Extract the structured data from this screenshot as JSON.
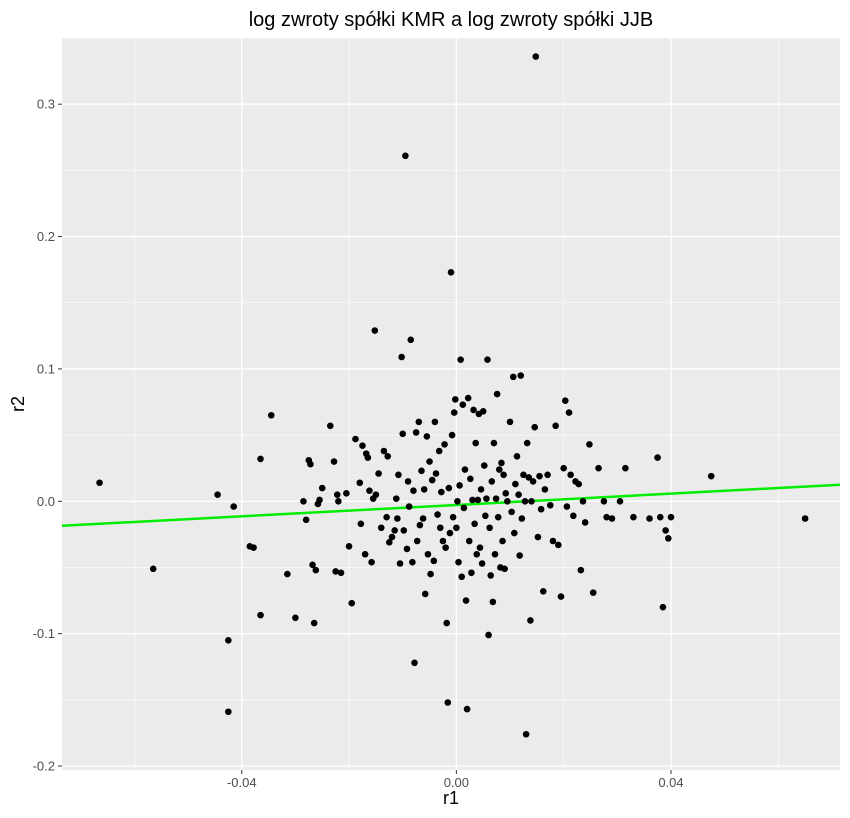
{
  "chart_data": {
    "type": "scatter",
    "title": "log zwroty spółki KMR a log zwroty spółki JJB",
    "xlabel": "r1",
    "ylabel": "r2",
    "xlim": [
      -0.0735,
      0.0715
    ],
    "ylim": [
      -0.203,
      0.35
    ],
    "x_ticks": [
      -0.04,
      0.0,
      0.04
    ],
    "x_tick_labels": [
      "-0.04",
      "0.00",
      "0.04"
    ],
    "y_ticks": [
      -0.2,
      -0.1,
      0.0,
      0.1,
      0.2,
      0.3
    ],
    "y_tick_labels": [
      "-0.2",
      "-0.1",
      "0.0",
      "0.1",
      "0.2",
      "0.3"
    ],
    "grid": true,
    "panel_background": "#ebebeb",
    "grid_color": "#ffffff",
    "point_color": "#000000",
    "trend_line": {
      "color": "#00ee00",
      "x": [
        -0.0735,
        0.0715
      ],
      "y": [
        -0.0185,
        0.0125
      ]
    },
    "points": [
      [
        -0.0665,
        0.014
      ],
      [
        -0.0565,
        -0.051
      ],
      [
        -0.0445,
        0.005
      ],
      [
        -0.0425,
        -0.105
      ],
      [
        -0.0425,
        -0.159
      ],
      [
        -0.0415,
        -0.004
      ],
      [
        -0.0385,
        -0.034
      ],
      [
        -0.0378,
        -0.035
      ],
      [
        -0.0365,
        0.032
      ],
      [
        -0.0365,
        -0.086
      ],
      [
        -0.0345,
        0.065
      ],
      [
        -0.0315,
        -0.055
      ],
      [
        -0.03,
        -0.088
      ],
      [
        -0.0285,
        0.0
      ],
      [
        -0.028,
        -0.014
      ],
      [
        -0.0275,
        0.031
      ],
      [
        -0.0272,
        0.028
      ],
      [
        -0.0268,
        -0.048
      ],
      [
        -0.0265,
        -0.092
      ],
      [
        -0.0262,
        -0.052
      ],
      [
        -0.0258,
        -0.002
      ],
      [
        -0.0255,
        0.001
      ],
      [
        -0.025,
        0.01
      ],
      [
        -0.0235,
        0.057
      ],
      [
        -0.0228,
        0.03
      ],
      [
        -0.0225,
        -0.053
      ],
      [
        -0.0222,
        0.005
      ],
      [
        -0.022,
        0.0
      ],
      [
        -0.0215,
        -0.054
      ],
      [
        -0.0205,
        0.006
      ],
      [
        -0.02,
        -0.034
      ],
      [
        -0.0195,
        -0.077
      ],
      [
        -0.0188,
        0.047
      ],
      [
        -0.018,
        0.014
      ],
      [
        -0.0178,
        -0.017
      ],
      [
        -0.0175,
        0.042
      ],
      [
        -0.017,
        -0.04
      ],
      [
        -0.0168,
        0.036
      ],
      [
        -0.0165,
        0.033
      ],
      [
        -0.0162,
        0.008
      ],
      [
        -0.0158,
        -0.046
      ],
      [
        -0.0155,
        0.002
      ],
      [
        -0.0152,
        0.129
      ],
      [
        -0.015,
        0.005
      ],
      [
        -0.0145,
        0.021
      ],
      [
        -0.014,
        -0.02
      ],
      [
        -0.0135,
        0.038
      ],
      [
        -0.013,
        -0.012
      ],
      [
        -0.0128,
        0.034
      ],
      [
        -0.0125,
        -0.031
      ],
      [
        -0.012,
        -0.027
      ],
      [
        -0.0115,
        -0.022
      ],
      [
        -0.0112,
        0.002
      ],
      [
        -0.011,
        -0.013
      ],
      [
        -0.0108,
        0.02
      ],
      [
        -0.0105,
        -0.047
      ],
      [
        -0.0102,
        0.109
      ],
      [
        -0.01,
        0.051
      ],
      [
        -0.0098,
        -0.022
      ],
      [
        -0.0095,
        0.261
      ],
      [
        -0.0092,
        -0.036
      ],
      [
        -0.009,
        0.015
      ],
      [
        -0.0088,
        -0.004
      ],
      [
        -0.0085,
        0.122
      ],
      [
        -0.0082,
        -0.046
      ],
      [
        -0.008,
        0.008
      ],
      [
        -0.0078,
        -0.122
      ],
      [
        -0.0075,
        0.052
      ],
      [
        -0.0073,
        -0.03
      ],
      [
        -0.007,
        0.06
      ],
      [
        -0.0068,
        -0.018
      ],
      [
        -0.0065,
        0.023
      ],
      [
        -0.0062,
        -0.013
      ],
      [
        -0.006,
        0.009
      ],
      [
        -0.0058,
        -0.07
      ],
      [
        -0.0055,
        0.049
      ],
      [
        -0.0053,
        -0.04
      ],
      [
        -0.005,
        0.03
      ],
      [
        -0.0048,
        -0.055
      ],
      [
        -0.0045,
        0.016
      ],
      [
        -0.0042,
        -0.045
      ],
      [
        -0.004,
        0.06
      ],
      [
        -0.0038,
        0.021
      ],
      [
        -0.0035,
        -0.01
      ],
      [
        -0.0032,
        0.038
      ],
      [
        -0.003,
        -0.02
      ],
      [
        -0.0028,
        0.007
      ],
      [
        -0.0025,
        -0.03
      ],
      [
        -0.0022,
        0.043
      ],
      [
        -0.002,
        -0.035
      ],
      [
        -0.0018,
        -0.092
      ],
      [
        -0.0016,
        -0.152
      ],
      [
        -0.0014,
        0.01
      ],
      [
        -0.0012,
        -0.024
      ],
      [
        -0.001,
        0.173
      ],
      [
        -0.0008,
        0.05
      ],
      [
        -0.0006,
        -0.012
      ],
      [
        -0.0004,
        0.067
      ],
      [
        -0.0002,
        0.077
      ],
      [
        0.0,
        -0.02
      ],
      [
        0.0002,
        0.0
      ],
      [
        0.0004,
        -0.046
      ],
      [
        0.0006,
        0.012
      ],
      [
        0.0008,
        0.107
      ],
      [
        0.001,
        -0.057
      ],
      [
        0.0012,
        0.073
      ],
      [
        0.0014,
        -0.005
      ],
      [
        0.0016,
        0.024
      ],
      [
        0.0018,
        -0.075
      ],
      [
        0.002,
        -0.157
      ],
      [
        0.0022,
        0.078
      ],
      [
        0.0024,
        -0.03
      ],
      [
        0.0026,
        0.017
      ],
      [
        0.0028,
        -0.054
      ],
      [
        0.003,
        0.001
      ],
      [
        0.0032,
        0.069
      ],
      [
        0.0034,
        -0.017
      ],
      [
        0.0036,
        0.044
      ],
      [
        0.0038,
        -0.04
      ],
      [
        0.004,
        0.001
      ],
      [
        0.0042,
        0.066
      ],
      [
        0.0044,
        -0.035
      ],
      [
        0.0046,
        0.009
      ],
      [
        0.0048,
        -0.047
      ],
      [
        0.005,
        0.068
      ],
      [
        0.0052,
        0.027
      ],
      [
        0.0054,
        -0.011
      ],
      [
        0.0056,
        0.002
      ],
      [
        0.0058,
        0.107
      ],
      [
        0.006,
        -0.101
      ],
      [
        0.0062,
        -0.02
      ],
      [
        0.0064,
        -0.056
      ],
      [
        0.0066,
        0.015
      ],
      [
        0.0068,
        -0.076
      ],
      [
        0.007,
        0.044
      ],
      [
        0.0072,
        -0.04
      ],
      [
        0.0074,
        0.002
      ],
      [
        0.0076,
        0.081
      ],
      [
        0.0078,
        -0.012
      ],
      [
        0.008,
        0.024
      ],
      [
        0.0082,
        -0.05
      ],
      [
        0.0084,
        0.029
      ],
      [
        0.0086,
        -0.03
      ],
      [
        0.0088,
        0.02
      ],
      [
        0.009,
        -0.051
      ],
      [
        0.0092,
        0.006
      ],
      [
        0.0095,
        0.0
      ],
      [
        0.01,
        0.06
      ],
      [
        0.0103,
        -0.008
      ],
      [
        0.0106,
        0.094
      ],
      [
        0.0108,
        -0.024
      ],
      [
        0.011,
        0.013
      ],
      [
        0.0113,
        0.034
      ],
      [
        0.0116,
        0.005
      ],
      [
        0.0118,
        -0.041
      ],
      [
        0.012,
        0.095
      ],
      [
        0.0122,
        -0.013
      ],
      [
        0.0125,
        0.02
      ],
      [
        0.0128,
        0.0
      ],
      [
        0.013,
        -0.176
      ],
      [
        0.0132,
        0.044
      ],
      [
        0.0135,
        0.018
      ],
      [
        0.0138,
        -0.09
      ],
      [
        0.014,
        0.0
      ],
      [
        0.0143,
        0.015
      ],
      [
        0.0146,
        0.056
      ],
      [
        0.0148,
        0.336
      ],
      [
        0.0152,
        -0.027
      ],
      [
        0.0155,
        0.019
      ],
      [
        0.0158,
        -0.006
      ],
      [
        0.0162,
        -0.068
      ],
      [
        0.0165,
        0.009
      ],
      [
        0.017,
        0.02
      ],
      [
        0.0175,
        -0.003
      ],
      [
        0.018,
        -0.03
      ],
      [
        0.0185,
        0.057
      ],
      [
        0.019,
        -0.033
      ],
      [
        0.0195,
        -0.072
      ],
      [
        0.02,
        0.025
      ],
      [
        0.0203,
        0.076
      ],
      [
        0.0206,
        -0.004
      ],
      [
        0.021,
        0.067
      ],
      [
        0.0213,
        0.02
      ],
      [
        0.0218,
        -0.011
      ],
      [
        0.0222,
        0.015
      ],
      [
        0.0228,
        0.013
      ],
      [
        0.0232,
        -0.052
      ],
      [
        0.0236,
        0.0
      ],
      [
        0.024,
        -0.016
      ],
      [
        0.0248,
        0.043
      ],
      [
        0.0255,
        -0.069
      ],
      [
        0.0265,
        0.025
      ],
      [
        0.0275,
        0.0
      ],
      [
        0.028,
        -0.012
      ],
      [
        0.029,
        -0.013
      ],
      [
        0.0305,
        0.0
      ],
      [
        0.0315,
        0.025
      ],
      [
        0.033,
        -0.012
      ],
      [
        0.036,
        -0.013
      ],
      [
        0.0375,
        0.033
      ],
      [
        0.038,
        -0.012
      ],
      [
        0.0385,
        -0.08
      ],
      [
        0.039,
        -0.022
      ],
      [
        0.0395,
        -0.028
      ],
      [
        0.04,
        -0.012
      ],
      [
        0.0475,
        0.019
      ],
      [
        0.065,
        -0.013
      ]
    ]
  }
}
